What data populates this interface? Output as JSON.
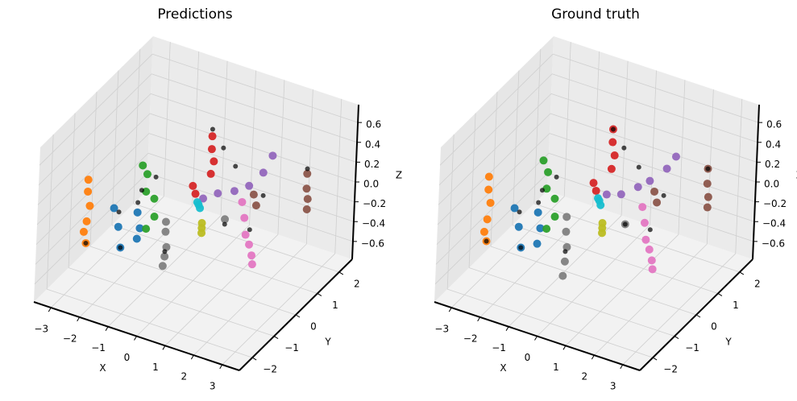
{
  "chart_data": [
    {
      "type": "scatter3d",
      "title": "Predictions",
      "xlabel": "X",
      "ylabel": "Y",
      "zlabel": "Z",
      "xlim": [
        -3.6,
        3.6
      ],
      "ylim": [
        -2.6,
        2.6
      ],
      "zlim": [
        -0.78,
        0.78
      ],
      "xticks": [
        {
          "value": -3,
          "label": "−3"
        },
        {
          "value": -2,
          "label": "−2"
        },
        {
          "value": -1,
          "label": "−1"
        },
        0,
        1,
        2,
        3
      ],
      "yticks": [
        {
          "value": -2,
          "label": "−2"
        },
        {
          "value": -1,
          "label": "−1"
        },
        0,
        1,
        2
      ],
      "zticks": [
        {
          "value": -0.6,
          "label": "−0.6"
        },
        {
          "value": -0.4,
          "label": "−0.4"
        },
        {
          "value": -0.2,
          "label": "−0.2"
        },
        {
          "value": 0,
          "label": "0.0"
        },
        0.2,
        0.4,
        0.6
      ],
      "grid": true,
      "series": [
        {
          "color": "#ff7f0e",
          "x": [
            -3.4,
            -3.4,
            -3.35,
            -3.4,
            -3.45,
            -3.4
          ],
          "y": [
            -0.5,
            -0.5,
            -0.45,
            -0.5,
            -0.55,
            -0.5
          ],
          "z": [
            0.02,
            -0.1,
            -0.25,
            -0.4,
            -0.5,
            -0.62
          ]
        },
        {
          "color": "#1f77b4",
          "x": [
            -2.4,
            -2.3,
            -2.2,
            -1.8,
            -1.7,
            -1.75
          ],
          "y": [
            -0.6,
            -0.5,
            -0.5,
            -0.3,
            -0.3,
            -0.35
          ],
          "z": [
            -0.15,
            -0.35,
            -0.55,
            -0.2,
            -0.35,
            -0.45
          ]
        },
        {
          "color": "#2ca02c",
          "x": [
            -1.9,
            -1.8,
            -1.75,
            -1.6,
            -1.5,
            -1.7
          ],
          "y": [
            0,
            0.1,
            0,
            0.2,
            0.1,
            0
          ],
          "z": [
            0.2,
            0.1,
            -0.05,
            -0.15,
            -0.3,
            -0.42
          ]
        },
        {
          "color": "#d62728",
          "x": [
            -0.5,
            -0.4,
            -0.4,
            -0.4,
            -0.35,
            -0.4
          ],
          "y": [
            0.5,
            0.5,
            1.2,
            1.2,
            1.25,
            1.2
          ],
          "z": [
            0.02,
            -0.05,
            0.38,
            0.25,
            0.12,
            0.0
          ]
        },
        {
          "color": "#9467bd",
          "x": [
            -0.2,
            0.3,
            0.8,
            1.3,
            1.7,
            2.0
          ],
          "y": [
            0.6,
            0.6,
            0.7,
            0.7,
            0.8,
            0.8
          ],
          "z": [
            -0.1,
            0.0,
            0.05,
            0.15,
            0.3,
            0.5
          ]
        },
        {
          "color": "#8c564b",
          "x": [
            1.4,
            1.5,
            2.5,
            2.5,
            2.55,
            2.5
          ],
          "y": [
            0.8,
            0.8,
            1.8,
            1.8,
            1.8,
            1.85
          ],
          "z": [
            0.05,
            -0.05,
            0.15,
            0.0,
            -0.1,
            -0.22
          ]
        },
        {
          "color": "#e377c2",
          "x": [
            1.8,
            1.9,
            2.0,
            2.1,
            2.2,
            2.2
          ],
          "y": [
            -0.3,
            -0.3,
            -0.35,
            -0.3,
            -0.3,
            -0.25
          ],
          "z": [
            0.25,
            0.1,
            -0.05,
            -0.15,
            -0.25,
            -0.35
          ]
        },
        {
          "color": "#7f7f7f",
          "x": [
            -0.3,
            -0.3,
            -0.25,
            -0.3,
            -0.35,
            1.3
          ],
          "y": [
            -1,
            -1,
            -1,
            -1,
            -1,
            -0.4
          ],
          "z": [
            0.0,
            -0.1,
            -0.25,
            -0.35,
            -0.45,
            0.05
          ]
        },
        {
          "color": "#bcbd22",
          "x": [
            0.8,
            0.8,
            0.8
          ],
          "y": [
            -0.8,
            -0.8,
            -0.8
          ],
          "z": [
            0.05,
            0.0,
            -0.05
          ]
        },
        {
          "color": "#17becf",
          "x": [
            0.3,
            0.35,
            0.25
          ],
          "y": [
            -0.3,
            -0.3,
            -0.3
          ],
          "z": [
            0.08,
            0.05,
            0.1
          ]
        },
        {
          "color": "#000000",
          "x": [
            -3.4,
            -2.3,
            -2.2,
            -1.8,
            -1.5,
            -0.3,
            -0.4,
            0.0,
            0.8,
            1.3,
            2.1,
            2.5,
            1.8,
            -1.9
          ],
          "y": [
            -0.5,
            -0.5,
            -0.5,
            -0.3,
            0.1,
            -1,
            1.2,
            1.2,
            0.7,
            -0.4,
            -0.3,
            1.8,
            0.7,
            0
          ],
          "z": [
            -0.62,
            -0.2,
            -0.55,
            -0.1,
            0.1,
            -0.3,
            0.45,
            0.3,
            0.3,
            0.0,
            0.0,
            0.2,
            0.1,
            -0.05
          ]
        }
      ]
    },
    {
      "type": "scatter3d",
      "title": "Ground truth",
      "xlabel": "X",
      "ylabel": "Y",
      "zlabel": "Z",
      "xlim": [
        -3.6,
        3.6
      ],
      "ylim": [
        -2.6,
        2.6
      ],
      "zlim": [
        -0.78,
        0.78
      ],
      "xticks": [
        {
          "value": -3,
          "label": "−3"
        },
        {
          "value": -2,
          "label": "−2"
        },
        {
          "value": -1,
          "label": "−1"
        },
        0,
        1,
        2,
        3
      ],
      "yticks": [
        {
          "value": -2,
          "label": "−2"
        },
        {
          "value": -1,
          "label": "−1"
        },
        0,
        1,
        2
      ],
      "zticks": [
        {
          "value": -0.6,
          "label": "−0.6"
        },
        {
          "value": -0.4,
          "label": "−0.4"
        },
        {
          "value": -0.2,
          "label": "−0.2"
        },
        {
          "value": 0,
          "label": "0.0"
        },
        0.2,
        0.4,
        0.6
      ],
      "grid": true,
      "series": [
        {
          "color": "#ff7f0e",
          "x": [
            -3.4,
            -3.4,
            -3.35,
            -3.4,
            -3.45,
            -3.4
          ],
          "y": [
            -0.5,
            -0.5,
            -0.45,
            -0.5,
            -0.55,
            -0.5
          ],
          "z": [
            0.05,
            -0.08,
            -0.22,
            -0.38,
            -0.5,
            -0.6
          ]
        },
        {
          "color": "#1f77b4",
          "x": [
            -2.4,
            -2.3,
            -2.2,
            -1.8,
            -1.7,
            -1.75
          ],
          "y": [
            -0.6,
            -0.5,
            -0.5,
            -0.3,
            -0.3,
            -0.35
          ],
          "z": [
            -0.15,
            -0.35,
            -0.55,
            -0.2,
            -0.35,
            -0.5
          ]
        },
        {
          "color": "#2ca02c",
          "x": [
            -1.9,
            -1.8,
            -1.75,
            -1.6,
            -1.5,
            -1.7
          ],
          "y": [
            0,
            0.1,
            0,
            0.2,
            0.1,
            0
          ],
          "z": [
            0.25,
            0.12,
            -0.02,
            -0.15,
            -0.3,
            -0.42
          ]
        },
        {
          "color": "#d62728",
          "x": [
            -0.5,
            -0.4,
            -0.4,
            -0.4,
            -0.35,
            -0.4
          ],
          "y": [
            0.5,
            0.5,
            1.2,
            1.2,
            1.25,
            1.2
          ],
          "z": [
            0.05,
            -0.02,
            0.45,
            0.32,
            0.18,
            0.05
          ]
        },
        {
          "color": "#9467bd",
          "x": [
            -0.1,
            0.4,
            0.9,
            1.3,
            1.8,
            2.1
          ],
          "y": [
            0.6,
            0.6,
            0.7,
            0.7,
            0.8,
            0.8
          ],
          "z": [
            -0.05,
            0.0,
            0.1,
            0.2,
            0.35,
            0.5
          ]
        },
        {
          "color": "#8c564b",
          "x": [
            1.4,
            1.5,
            2.5,
            2.5,
            2.55,
            2.5
          ],
          "y": [
            0.8,
            0.8,
            1.8,
            1.8,
            1.8,
            1.85
          ],
          "z": [
            0.08,
            -0.02,
            0.2,
            0.05,
            -0.08,
            -0.2
          ]
        },
        {
          "color": "#e377c2",
          "x": [
            1.8,
            1.9,
            2.0,
            2.1,
            2.2,
            2.2
          ],
          "y": [
            -0.3,
            -0.3,
            -0.35,
            -0.3,
            -0.3,
            -0.25
          ],
          "z": [
            0.2,
            0.05,
            -0.1,
            -0.2,
            -0.3,
            -0.4
          ]
        },
        {
          "color": "#7f7f7f",
          "x": [
            -0.3,
            -0.3,
            -0.25,
            -0.3,
            -0.35,
            1.3
          ],
          "y": [
            -1,
            -1,
            -1,
            -1,
            -1,
            -0.4
          ],
          "z": [
            0.05,
            -0.1,
            -0.25,
            -0.4,
            -0.55,
            0.0
          ]
        },
        {
          "color": "#bcbd22",
          "x": [
            0.8,
            0.8,
            0.8
          ],
          "y": [
            -0.8,
            -0.8,
            -0.8
          ],
          "z": [
            0.05,
            0.0,
            -0.05
          ]
        },
        {
          "color": "#17becf",
          "x": [
            0.3,
            0.35,
            0.25
          ],
          "y": [
            -0.3,
            -0.3,
            -0.3
          ],
          "z": [
            0.12,
            0.08,
            0.14
          ]
        },
        {
          "color": "#000000",
          "x": [
            -3.4,
            -2.3,
            -2.2,
            -1.8,
            -1.5,
            -0.3,
            -0.4,
            0.0,
            0.9,
            1.3,
            2.1,
            2.5,
            1.8,
            -1.9
          ],
          "y": [
            -0.5,
            -0.5,
            -0.5,
            -0.3,
            0.1,
            -1,
            1.2,
            1.2,
            0.7,
            -0.4,
            -0.3,
            1.8,
            0.7,
            0
          ],
          "z": [
            -0.6,
            -0.2,
            -0.55,
            -0.1,
            0.1,
            -0.3,
            0.45,
            0.3,
            0.3,
            0.0,
            0.0,
            0.2,
            0.1,
            -0.05
          ]
        }
      ]
    }
  ]
}
